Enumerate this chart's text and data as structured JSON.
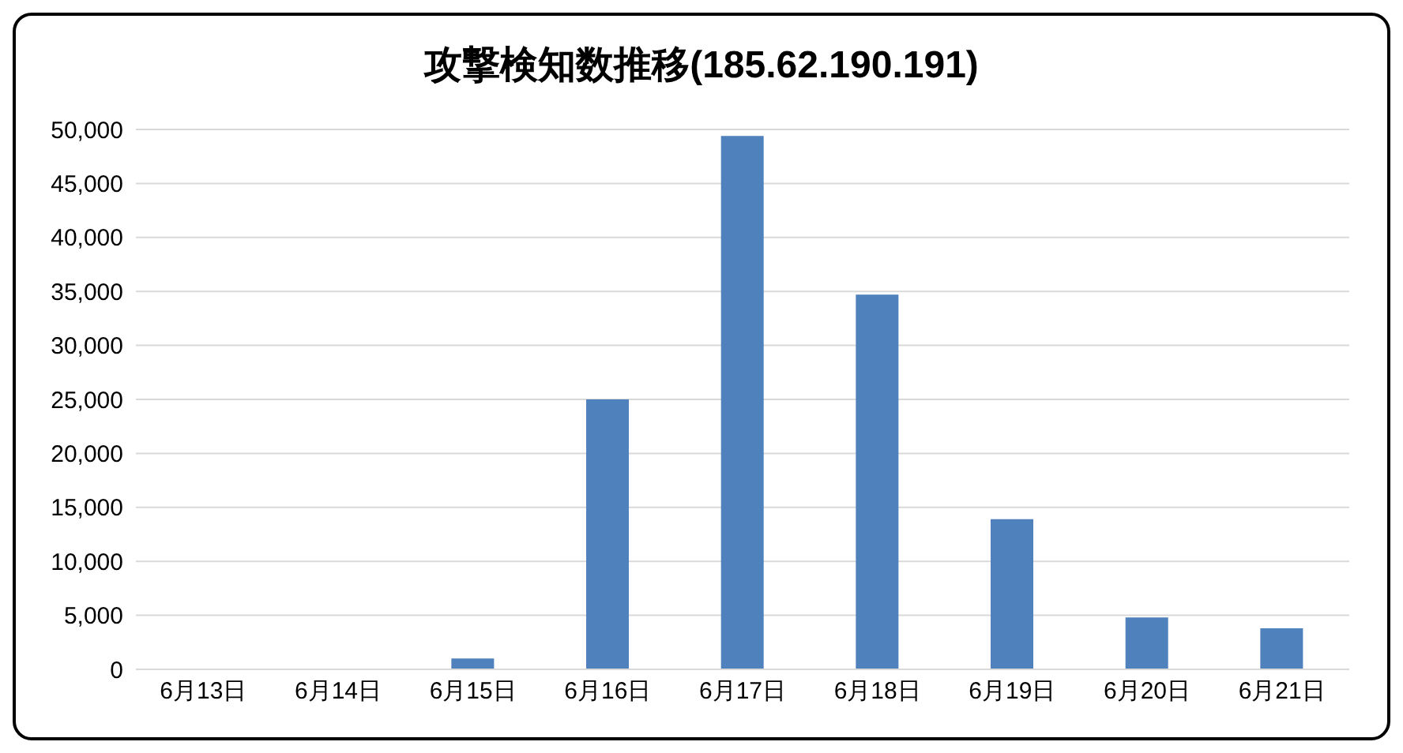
{
  "chart_data": {
    "type": "bar",
    "title": "攻撃検知数推移(185.62.190.191)",
    "categories": [
      "6月13日",
      "6月14日",
      "6月15日",
      "6月16日",
      "6月17日",
      "6月18日",
      "6月19日",
      "6月20日",
      "6月21日"
    ],
    "values": [
      0,
      0,
      1000,
      25000,
      49400,
      34700,
      13900,
      4800,
      3800
    ],
    "color": "#4f81bd",
    "ylim": [
      0,
      50000
    ],
    "yticks": [
      0,
      {
        "value": 5000,
        "label": "5,000"
      },
      {
        "value": 10000,
        "label": "10,000"
      },
      {
        "value": 15000,
        "label": "15,000"
      },
      {
        "value": 20000,
        "label": "20,000"
      },
      {
        "value": 25000,
        "label": "25,000"
      },
      {
        "value": 30000,
        "label": "30,000"
      },
      {
        "value": 35000,
        "label": "35,000"
      },
      {
        "value": 40000,
        "label": "40,000"
      },
      {
        "value": 45000,
        "label": "45,000"
      },
      {
        "value": 50000,
        "label": "50,000"
      }
    ],
    "grid": "y"
  }
}
